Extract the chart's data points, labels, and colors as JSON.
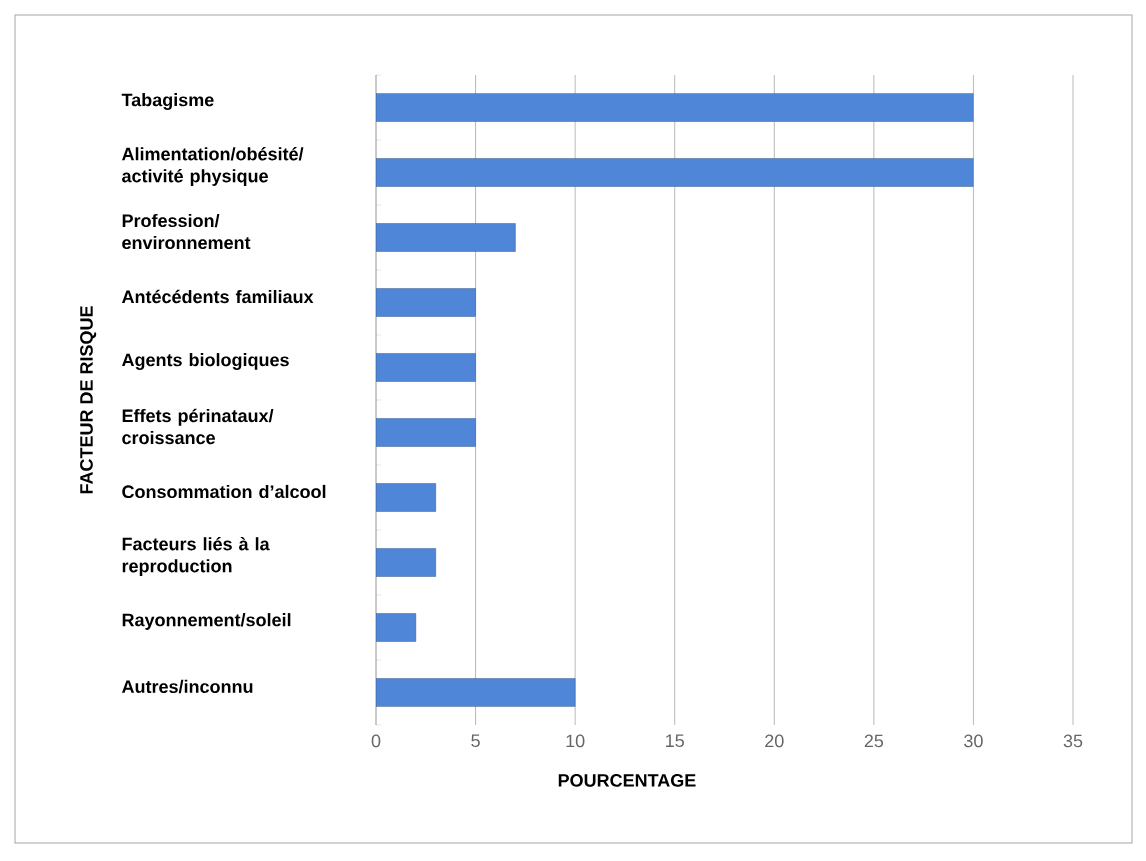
{
  "chart_data": {
    "type": "bar",
    "orientation": "horizontal",
    "categories": [
      "Tabagisme",
      "Alimentation/obésité/ activité physique",
      "Profession/ environnement",
      "Antécédents familiaux",
      "Agents biologiques",
      "Effets périnataux/ croissance",
      "Consommation d’alcool",
      "Facteurs liés à la reproduction",
      "Rayonnement/soleil",
      "Autres/inconnu"
    ],
    "values": [
      30,
      30,
      7,
      5,
      5,
      5,
      3,
      3,
      2,
      10
    ],
    "color": "#4f86d8",
    "xlim": [
      0,
      35
    ],
    "xticks": [
      0,
      5,
      10,
      15,
      20,
      25,
      30,
      35
    ],
    "grid": "x",
    "xlabel": "POURCENTAGE",
    "ylabel": "FACTEUR DE RISQUE"
  }
}
